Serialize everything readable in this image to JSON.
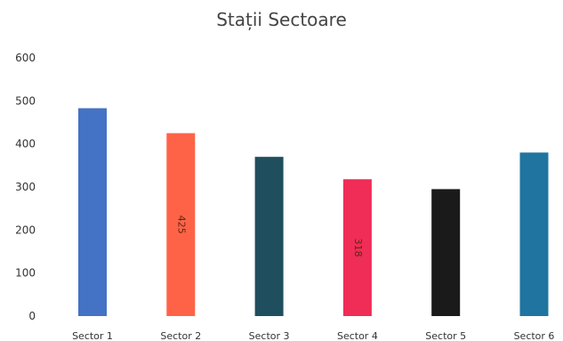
{
  "chart_data": {
    "type": "bar",
    "title": "Stații Sectoare",
    "xlabel": "",
    "ylabel": "",
    "categories": [
      "Sector 1",
      "Sector 2",
      "Sector 3",
      "Sector 4",
      "Sector 5",
      "Sector 6"
    ],
    "values": [
      483,
      425,
      370,
      318,
      295,
      380
    ],
    "data_labels": [
      "",
      "425",
      "",
      "318",
      "",
      ""
    ],
    "colors": [
      "#4472C4",
      "#FF6347",
      "#1F4E5F",
      "#EF2D56",
      "#1A1A1A",
      "#2074A0"
    ],
    "ylim": [
      0,
      600
    ],
    "yticks": [
      0,
      100,
      200,
      300,
      400,
      500,
      600
    ],
    "grid": false,
    "legend": "none"
  }
}
